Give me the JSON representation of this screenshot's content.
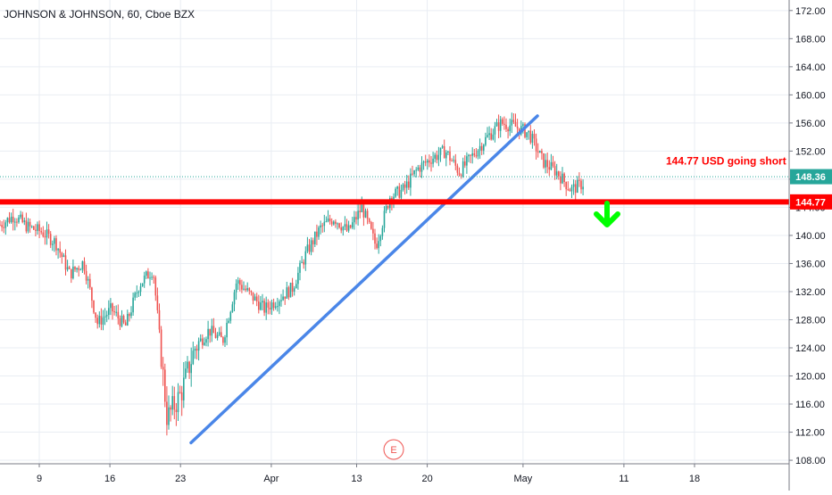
{
  "header": {
    "symbol_title": "JOHNSON & JOHNSON, 60, Cboe BZX"
  },
  "chart_data": {
    "type": "candlestick",
    "title": "JOHNSON & JOHNSON, 60, Cboe BZX",
    "ylim": [
      107.5,
      173.5
    ],
    "y_ticks": [
      "172.00",
      "168.00",
      "164.00",
      "160.00",
      "156.00",
      "152.00",
      "148.00",
      "144.00",
      "140.00",
      "136.00",
      "132.00",
      "128.00",
      "124.00",
      "120.00",
      "116.00",
      "112.00",
      "108.00"
    ],
    "y_tick_values": [
      172,
      168,
      164,
      160,
      156,
      152,
      148,
      144,
      140,
      136,
      132,
      128,
      124,
      120,
      116,
      112,
      108
    ],
    "x_ticks": [
      "9",
      "16",
      "23",
      "Apr",
      "13",
      "20",
      "May",
      "11",
      "18"
    ],
    "grid": true,
    "price_path": [
      [
        "Mar 5",
        141.5
      ],
      [
        "Mar 6",
        142.8
      ],
      [
        "Mar 9",
        141.2
      ],
      [
        "Mar 10",
        140.5
      ],
      [
        "Mar 11",
        139.0
      ],
      [
        "Mar 12",
        134.5
      ],
      [
        "Mar 13",
        136.2
      ],
      [
        "Mar 16",
        127.5
      ],
      [
        "Mar 17",
        129.5
      ],
      [
        "Mar 18",
        127.0
      ],
      [
        "Mar 19",
        133.0
      ],
      [
        "Mar 20",
        135.2
      ],
      [
        "Mar 23",
        114.0
      ],
      [
        "Mar 24",
        117.5
      ],
      [
        "Mar 25",
        124.0
      ],
      [
        "Mar 26",
        126.5
      ],
      [
        "Mar 27",
        125.0
      ],
      [
        "Mar 30",
        133.5
      ],
      [
        "Mar 31",
        131.5
      ],
      [
        "Apr 1",
        129.5
      ],
      [
        "Apr 2",
        131.0
      ],
      [
        "Apr 3",
        132.5
      ],
      [
        "Apr 6",
        137.5
      ],
      [
        "Apr 7",
        141.0
      ],
      [
        "Apr 8",
        142.5
      ],
      [
        "Apr 9",
        140.5
      ],
      [
        "Apr 10",
        144.0
      ],
      [
        "Apr 13",
        138.5
      ],
      [
        "Apr 14",
        145.5
      ],
      [
        "Apr 15",
        146.5
      ],
      [
        "Apr 16",
        149.5
      ],
      [
        "Apr 17",
        151.0
      ],
      [
        "Apr 20",
        152.0
      ],
      [
        "Apr 21",
        149.0
      ],
      [
        "Apr 22",
        151.5
      ],
      [
        "Apr 23",
        154.0
      ],
      [
        "Apr 24",
        156.0
      ],
      [
        "Apr 27",
        155.5
      ],
      [
        "Apr 28",
        154.5
      ],
      [
        "Apr 29",
        150.5
      ],
      [
        "Apr 30",
        149.0
      ],
      [
        "May 1",
        146.5
      ],
      [
        "May 4",
        147.5
      ]
    ],
    "last_price": {
      "label": "148.36",
      "value": 148.36,
      "color": "#26a69a"
    },
    "annotations": {
      "horizontal_line": {
        "value": 144.77,
        "label": "144.77",
        "color": "#ff0000"
      },
      "note": {
        "text": "144.77 USD  going short",
        "color": "#ff0000"
      },
      "trendline": {
        "from": [
          "Mar 23",
          110.5
        ],
        "to": [
          "Apr 27",
          157.0
        ],
        "color": "#4a86e8"
      },
      "arrow": {
        "direction": "down",
        "color": "#00ff00"
      },
      "earnings_marker": {
        "text": "E",
        "color": "#ef5350"
      }
    },
    "colors": {
      "up": "#26a69a",
      "down": "#ef5350",
      "grid": "#e9edf3"
    }
  }
}
